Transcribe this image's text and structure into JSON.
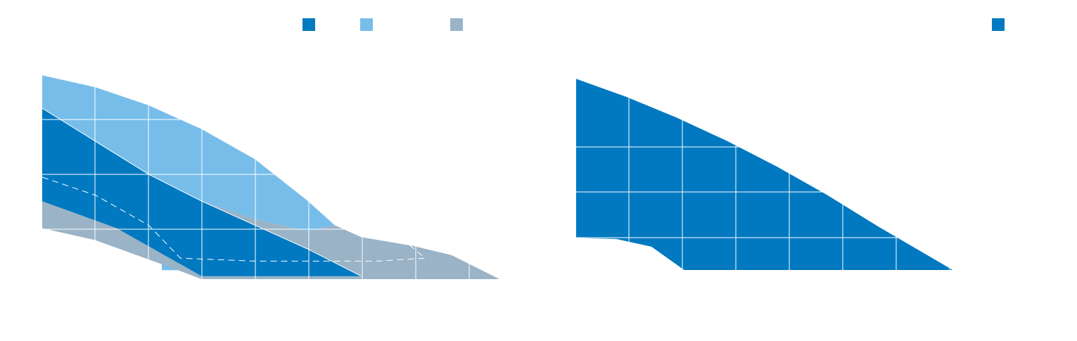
{
  "colors": {
    "dark_blue": "#0079c1",
    "light_blue": "#77bdea",
    "grey_blue": "#9ab3c6",
    "grid": "#ffffff",
    "background": "#ffffff"
  },
  "chart_data": [
    {
      "type": "area",
      "grid": true,
      "legend_position": "top-right",
      "legend": [
        {
          "name": "",
          "color": "#0079c1"
        },
        {
          "name": "",
          "color": "#77bdea"
        },
        {
          "name": "",
          "color": "#9ab3c6"
        }
      ],
      "xlim": [
        0,
        8.6
      ],
      "ylim": [
        0,
        3.6
      ],
      "series": [
        {
          "name": "",
          "color": "#77bdea",
          "points": [
            [
              0,
              3.4
            ],
            [
              1,
              3.2
            ],
            [
              2,
              2.9
            ],
            [
              3,
              2.5
            ],
            [
              4,
              2.0
            ],
            [
              5,
              1.3
            ],
            [
              5.5,
              0.9
            ],
            [
              5,
              0.8
            ],
            [
              4,
              1.0
            ],
            [
              3,
              1.3
            ],
            [
              2,
              1.75
            ],
            [
              1,
              2.3
            ],
            [
              0,
              2.85
            ],
            [
              0,
              2.0
            ],
            [
              0,
              1.55
            ],
            [
              0,
              1.1
            ],
            [
              2,
              0.88
            ],
            [
              2.25,
              0.3
            ],
            [
              2.25,
              0.15
            ],
            [
              2.7,
              0.15
            ],
            [
              1.9,
              0.7
            ],
            [
              0,
              1.1
            ]
          ]
        },
        {
          "name": "",
          "color": "#9ab3c6",
          "points": [
            [
              0,
              2.85
            ],
            [
              1,
              2.3
            ],
            [
              2,
              1.75
            ],
            [
              3,
              1.3
            ],
            [
              4,
              1.0
            ],
            [
              5,
              0.8
            ],
            [
              5.5,
              0.9
            ],
            [
              6,
              0.7
            ],
            [
              7,
              0.55
            ],
            [
              7.7,
              0.4
            ],
            [
              8.6,
              0.0
            ],
            [
              3,
              0.0
            ],
            [
              2.4,
              0.2
            ],
            [
              1,
              0.65
            ],
            [
              0,
              0.85
            ]
          ]
        },
        {
          "name": "",
          "color": "#0079c1",
          "points": [
            [
              0,
              2.85
            ],
            [
              1,
              2.3
            ],
            [
              2,
              1.75
            ],
            [
              3,
              1.3
            ],
            [
              4,
              0.9
            ],
            [
              5,
              0.5
            ],
            [
              6,
              0.05
            ],
            [
              3,
              0.05
            ],
            [
              1.4,
              0.85
            ],
            [
              0,
              1.3
            ]
          ]
        }
      ],
      "reference_line": {
        "style": "dashed",
        "color": "#ffffff",
        "points": [
          [
            0,
            1.7
          ],
          [
            1,
            1.4
          ],
          [
            2,
            0.9
          ],
          [
            2.6,
            0.35
          ],
          [
            4,
            0.3
          ],
          [
            6.3,
            0.3
          ],
          [
            7.2,
            0.35
          ],
          [
            6.6,
            0.8
          ],
          [
            6.1,
            1.05
          ]
        ]
      }
    },
    {
      "type": "area",
      "grid": true,
      "legend_position": "top-right",
      "legend": [
        {
          "name": "",
          "color": "#0079c1"
        }
      ],
      "xlim": [
        0,
        8
      ],
      "ylim": [
        0,
        4
      ],
      "series": [
        {
          "name": "",
          "color": "#0079c1",
          "points": [
            [
              0,
              3.7
            ],
            [
              1,
              3.35
            ],
            [
              2,
              2.95
            ],
            [
              3,
              2.5
            ],
            [
              4,
              2.0
            ],
            [
              5,
              1.45
            ],
            [
              6,
              0.85
            ],
            [
              7.5,
              0.0
            ],
            [
              2.15,
              0.0
            ],
            [
              1.5,
              0.45
            ],
            [
              0.8,
              0.6
            ],
            [
              0,
              0.62
            ]
          ]
        }
      ]
    }
  ]
}
